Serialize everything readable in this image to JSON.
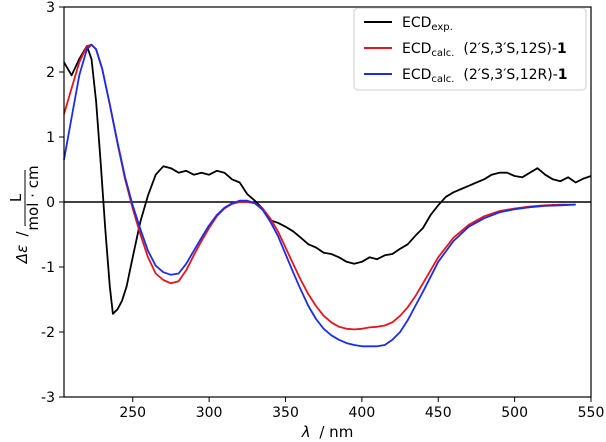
{
  "chart_data": {
    "type": "line",
    "xlabel": {
      "symbol": "λ",
      "unit": "/ nm"
    },
    "ylabel": {
      "symbol": "Δε",
      "sep": "/",
      "numerator": "L",
      "denominator": "mol · cm"
    },
    "xlim": [
      205,
      550
    ],
    "ylim": [
      -3,
      3
    ],
    "xticks": [
      250,
      300,
      350,
      400,
      450,
      500,
      550
    ],
    "yticks": [
      -3,
      -2,
      -1,
      0,
      1,
      2,
      3
    ],
    "zero_line": true,
    "grid": false,
    "legend_position": "top-right",
    "series": [
      {
        "name_main": "ECD",
        "name_sub": "exp.",
        "name_tail": "",
        "name_bold": "",
        "color": "#000000",
        "x": [
          205,
          210,
          215,
          220,
          223,
          226,
          229,
          232,
          235,
          237,
          240,
          243,
          246,
          250,
          255,
          260,
          265,
          270,
          275,
          280,
          285,
          290,
          295,
          300,
          305,
          310,
          315,
          320,
          325,
          330,
          335,
          340,
          345,
          350,
          355,
          360,
          365,
          370,
          375,
          380,
          385,
          390,
          395,
          400,
          405,
          410,
          415,
          420,
          425,
          430,
          435,
          440,
          445,
          450,
          455,
          460,
          465,
          470,
          475,
          480,
          485,
          490,
          495,
          500,
          505,
          510,
          515,
          520,
          525,
          530,
          535,
          540,
          545,
          550
        ],
        "y": [
          2.15,
          1.95,
          2.2,
          2.4,
          2.2,
          1.55,
          0.6,
          -0.4,
          -1.3,
          -1.72,
          -1.65,
          -1.52,
          -1.3,
          -0.85,
          -0.3,
          0.1,
          0.42,
          0.55,
          0.52,
          0.45,
          0.48,
          0.42,
          0.45,
          0.42,
          0.48,
          0.45,
          0.35,
          0.3,
          0.12,
          0.02,
          -0.1,
          -0.28,
          -0.32,
          -0.38,
          -0.45,
          -0.55,
          -0.65,
          -0.7,
          -0.78,
          -0.8,
          -0.85,
          -0.92,
          -0.95,
          -0.92,
          -0.85,
          -0.88,
          -0.82,
          -0.8,
          -0.72,
          -0.65,
          -0.52,
          -0.4,
          -0.2,
          -0.05,
          0.08,
          0.15,
          0.2,
          0.25,
          0.3,
          0.35,
          0.42,
          0.45,
          0.45,
          0.4,
          0.38,
          0.45,
          0.52,
          0.42,
          0.35,
          0.32,
          0.38,
          0.3,
          0.36,
          0.4
        ]
      },
      {
        "name_main": "ECD",
        "name_sub": "calc.",
        "name_tail": "  (2′S,3′S,12S)-",
        "name_bold": "1",
        "color": "#e8141c",
        "x": [
          205,
          210,
          215,
          220,
          223,
          226,
          230,
          235,
          240,
          245,
          250,
          255,
          260,
          265,
          270,
          275,
          280,
          285,
          290,
          295,
          300,
          305,
          310,
          315,
          320,
          325,
          330,
          335,
          340,
          345,
          350,
          355,
          360,
          365,
          370,
          375,
          380,
          385,
          390,
          395,
          400,
          405,
          410,
          415,
          420,
          425,
          430,
          435,
          440,
          445,
          450,
          460,
          470,
          480,
          490,
          500,
          510,
          520,
          530,
          540
        ],
        "y": [
          1.35,
          1.75,
          2.15,
          2.4,
          2.42,
          2.35,
          2.05,
          1.5,
          0.9,
          0.35,
          -0.1,
          -0.5,
          -0.85,
          -1.1,
          -1.2,
          -1.25,
          -1.22,
          -1.05,
          -0.82,
          -0.6,
          -0.4,
          -0.22,
          -0.1,
          -0.03,
          0.0,
          0.0,
          -0.02,
          -0.1,
          -0.25,
          -0.45,
          -0.7,
          -0.95,
          -1.2,
          -1.42,
          -1.6,
          -1.75,
          -1.85,
          -1.92,
          -1.95,
          -1.96,
          -1.95,
          -1.93,
          -1.92,
          -1.9,
          -1.85,
          -1.75,
          -1.62,
          -1.45,
          -1.25,
          -1.05,
          -0.85,
          -0.55,
          -0.35,
          -0.22,
          -0.14,
          -0.1,
          -0.07,
          -0.05,
          -0.04,
          -0.04
        ]
      },
      {
        "name_main": "ECD",
        "name_sub": "calc.",
        "name_tail": "  (2′S,3′S,12R)-",
        "name_bold": "1",
        "color": "#1a2ee6",
        "x": [
          205,
          210,
          215,
          220,
          223,
          226,
          230,
          235,
          240,
          245,
          250,
          255,
          260,
          265,
          270,
          275,
          280,
          285,
          290,
          295,
          300,
          305,
          310,
          315,
          320,
          325,
          330,
          335,
          340,
          345,
          350,
          355,
          360,
          365,
          370,
          375,
          380,
          385,
          390,
          395,
          400,
          405,
          410,
          415,
          420,
          425,
          430,
          435,
          440,
          445,
          450,
          460,
          470,
          480,
          490,
          500,
          510,
          520,
          530,
          540
        ],
        "y": [
          0.65,
          1.3,
          1.95,
          2.35,
          2.42,
          2.35,
          2.05,
          1.5,
          0.92,
          0.38,
          -0.05,
          -0.42,
          -0.75,
          -0.98,
          -1.08,
          -1.12,
          -1.1,
          -0.95,
          -0.75,
          -0.55,
          -0.36,
          -0.2,
          -0.09,
          -0.02,
          0.02,
          0.02,
          -0.02,
          -0.12,
          -0.3,
          -0.52,
          -0.8,
          -1.08,
          -1.35,
          -1.6,
          -1.8,
          -1.95,
          -2.05,
          -2.12,
          -2.17,
          -2.2,
          -2.22,
          -2.22,
          -2.22,
          -2.2,
          -2.12,
          -2.0,
          -1.82,
          -1.6,
          -1.38,
          -1.15,
          -0.92,
          -0.6,
          -0.38,
          -0.25,
          -0.16,
          -0.11,
          -0.08,
          -0.06,
          -0.05,
          -0.04
        ]
      }
    ]
  }
}
